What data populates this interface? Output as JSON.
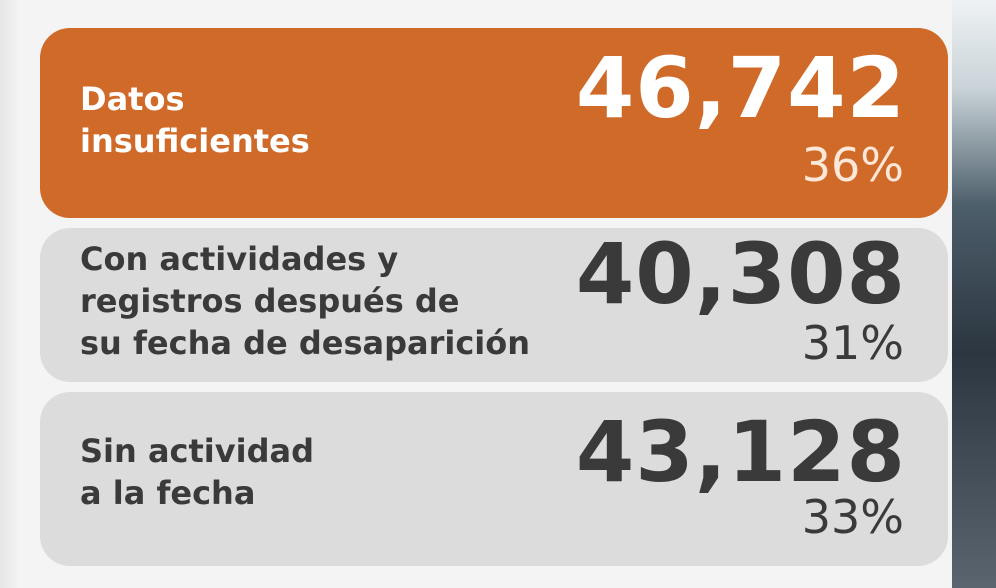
{
  "items": [
    {
      "label_lines": [
        "Datos",
        "insuficientes"
      ],
      "value": "46,742",
      "percent": "36%"
    },
    {
      "label_lines": [
        "Con actividades y",
        "registros después de",
        "su fecha de desaparición"
      ],
      "value": "40,308",
      "percent": "31%"
    },
    {
      "label_lines": [
        "Sin actividad",
        "a la fecha"
      ],
      "value": "43,128",
      "percent": "33%"
    }
  ]
}
